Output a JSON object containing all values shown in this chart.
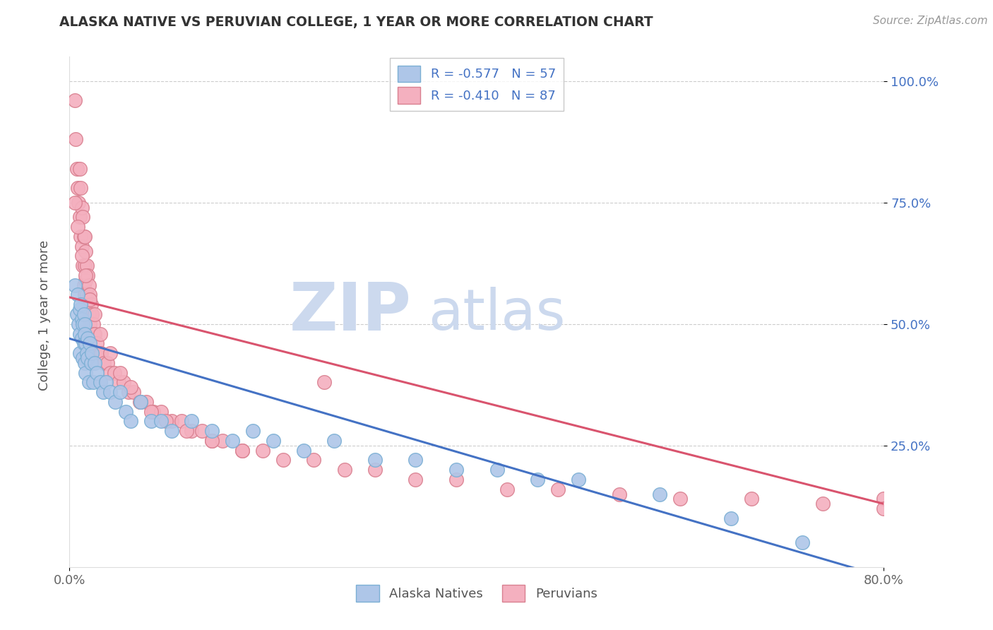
{
  "title": "ALASKA NATIVE VS PERUVIAN COLLEGE, 1 YEAR OR MORE CORRELATION CHART",
  "source_text": "Source: ZipAtlas.com",
  "ylabel": "College, 1 year or more",
  "xlim": [
    0.0,
    0.8
  ],
  "ylim": [
    0.0,
    1.05
  ],
  "grid_color": "#cccccc",
  "background_color": "#ffffff",
  "alaska_color": "#aec6e8",
  "alaska_edge_color": "#7bafd4",
  "peruvian_color": "#f4b0bf",
  "peruvian_edge_color": "#d98090",
  "label1": "R = -0.577   N = 57",
  "label2": "R = -0.410   N = 87",
  "alaska_line_color": "#4472c4",
  "peruvian_line_color": "#d9546e",
  "watermark_zip": "ZIP",
  "watermark_atlas": "atlas",
  "watermark_color": "#ccd9ee",
  "alaska_line_x0": 0.0,
  "alaska_line_y0": 0.47,
  "alaska_line_x1": 0.8,
  "alaska_line_y1": -0.02,
  "peruvian_line_x0": 0.0,
  "peruvian_line_y0": 0.555,
  "peruvian_line_x1": 0.8,
  "peruvian_line_y1": 0.13,
  "bottom_label_alaska": "Alaska Natives",
  "bottom_label_peruvian": "Peruvians",
  "alaska_x": [
    0.005,
    0.007,
    0.008,
    0.009,
    0.01,
    0.01,
    0.01,
    0.011,
    0.012,
    0.012,
    0.013,
    0.013,
    0.014,
    0.014,
    0.015,
    0.015,
    0.015,
    0.016,
    0.016,
    0.017,
    0.018,
    0.018,
    0.019,
    0.02,
    0.021,
    0.022,
    0.023,
    0.025,
    0.027,
    0.03,
    0.033,
    0.036,
    0.04,
    0.045,
    0.05,
    0.055,
    0.06,
    0.07,
    0.08,
    0.09,
    0.1,
    0.12,
    0.14,
    0.16,
    0.18,
    0.2,
    0.23,
    0.26,
    0.3,
    0.34,
    0.38,
    0.42,
    0.46,
    0.5,
    0.58,
    0.65,
    0.72
  ],
  "alaska_y": [
    0.58,
    0.52,
    0.56,
    0.5,
    0.53,
    0.48,
    0.44,
    0.54,
    0.51,
    0.47,
    0.5,
    0.43,
    0.52,
    0.46,
    0.5,
    0.48,
    0.42,
    0.46,
    0.4,
    0.44,
    0.47,
    0.43,
    0.38,
    0.46,
    0.42,
    0.44,
    0.38,
    0.42,
    0.4,
    0.38,
    0.36,
    0.38,
    0.36,
    0.34,
    0.36,
    0.32,
    0.3,
    0.34,
    0.3,
    0.3,
    0.28,
    0.3,
    0.28,
    0.26,
    0.28,
    0.26,
    0.24,
    0.26,
    0.22,
    0.22,
    0.2,
    0.2,
    0.18,
    0.18,
    0.15,
    0.1,
    0.05
  ],
  "peruvian_x": [
    0.005,
    0.006,
    0.007,
    0.008,
    0.009,
    0.01,
    0.01,
    0.011,
    0.011,
    0.012,
    0.012,
    0.013,
    0.013,
    0.014,
    0.014,
    0.015,
    0.015,
    0.015,
    0.016,
    0.016,
    0.017,
    0.017,
    0.018,
    0.018,
    0.019,
    0.019,
    0.02,
    0.02,
    0.021,
    0.022,
    0.023,
    0.024,
    0.025,
    0.027,
    0.029,
    0.031,
    0.034,
    0.037,
    0.04,
    0.044,
    0.048,
    0.053,
    0.058,
    0.063,
    0.069,
    0.075,
    0.082,
    0.09,
    0.1,
    0.11,
    0.12,
    0.13,
    0.14,
    0.15,
    0.17,
    0.19,
    0.21,
    0.24,
    0.27,
    0.3,
    0.34,
    0.38,
    0.43,
    0.48,
    0.54,
    0.6,
    0.67,
    0.74,
    0.8,
    0.8,
    0.005,
    0.008,
    0.012,
    0.016,
    0.02,
    0.025,
    0.03,
    0.04,
    0.05,
    0.06,
    0.07,
    0.08,
    0.095,
    0.115,
    0.14,
    0.17,
    0.25
  ],
  "peruvian_y": [
    0.96,
    0.88,
    0.82,
    0.78,
    0.75,
    0.82,
    0.72,
    0.78,
    0.68,
    0.74,
    0.66,
    0.72,
    0.62,
    0.68,
    0.58,
    0.68,
    0.62,
    0.56,
    0.65,
    0.59,
    0.62,
    0.56,
    0.6,
    0.54,
    0.58,
    0.52,
    0.56,
    0.5,
    0.54,
    0.52,
    0.5,
    0.48,
    0.48,
    0.46,
    0.44,
    0.44,
    0.42,
    0.42,
    0.4,
    0.4,
    0.38,
    0.38,
    0.36,
    0.36,
    0.34,
    0.34,
    0.32,
    0.32,
    0.3,
    0.3,
    0.28,
    0.28,
    0.26,
    0.26,
    0.24,
    0.24,
    0.22,
    0.22,
    0.2,
    0.2,
    0.18,
    0.18,
    0.16,
    0.16,
    0.15,
    0.14,
    0.14,
    0.13,
    0.14,
    0.12,
    0.75,
    0.7,
    0.64,
    0.6,
    0.55,
    0.52,
    0.48,
    0.44,
    0.4,
    0.37,
    0.34,
    0.32,
    0.3,
    0.28,
    0.26,
    0.24,
    0.38
  ]
}
